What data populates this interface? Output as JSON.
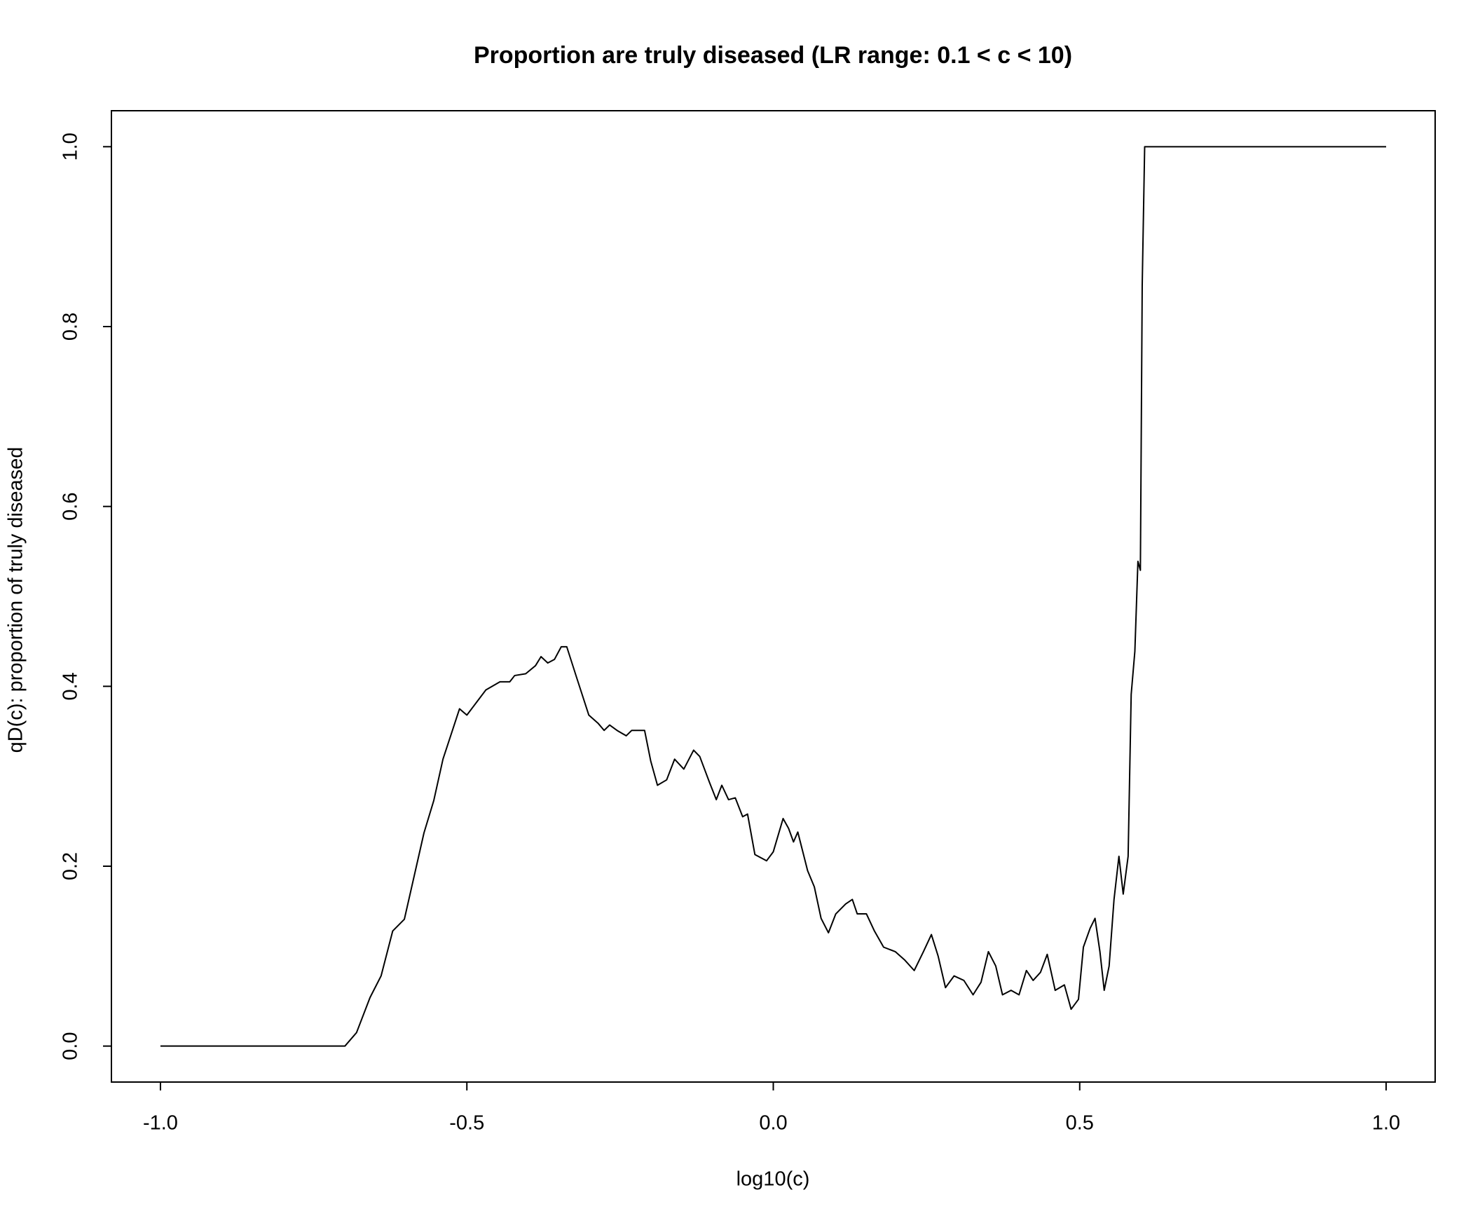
{
  "chart_data": {
    "type": "line",
    "title": "Proportion are truly diseased (LR range: 0.1 < c < 10)",
    "x_label": "log10(c)",
    "y_label": "qD(c): proportion of truly diseased",
    "color": "#000000",
    "x": [
      -1.0,
      -0.699,
      -0.68,
      -0.658,
      -0.64,
      -0.621,
      -0.602,
      -0.57,
      -0.554,
      -0.539,
      -0.512,
      -0.5,
      -0.469,
      -0.446,
      -0.43,
      -0.422,
      -0.404,
      -0.388,
      -0.379,
      -0.368,
      -0.357,
      -0.346,
      -0.337,
      -0.321,
      -0.301,
      -0.286,
      -0.276,
      -0.267,
      -0.255,
      -0.24,
      -0.231,
      -0.21,
      -0.2,
      -0.189,
      -0.174,
      -0.161,
      -0.146,
      -0.13,
      -0.12,
      -0.104,
      -0.093,
      -0.084,
      -0.073,
      -0.062,
      -0.05,
      -0.042,
      -0.03,
      -0.011,
      0.0,
      0.016,
      0.025,
      0.033,
      0.04,
      0.056,
      0.067,
      0.078,
      0.09,
      0.102,
      0.118,
      0.129,
      0.137,
      0.152,
      0.165,
      0.18,
      0.199,
      0.214,
      0.23,
      0.245,
      0.258,
      0.269,
      0.281,
      0.295,
      0.311,
      0.326,
      0.339,
      0.351,
      0.363,
      0.374,
      0.388,
      0.401,
      0.413,
      0.424,
      0.436,
      0.447,
      0.46,
      0.475,
      0.486,
      0.498,
      0.506,
      0.517,
      0.525,
      0.533,
      0.54,
      0.548,
      0.556,
      0.564,
      0.571,
      0.579,
      0.584,
      0.59,
      0.595,
      0.599,
      0.602,
      0.606,
      1.0
    ],
    "values": [
      0,
      0,
      0.015,
      0.054,
      0.078,
      0.128,
      0.141,
      0.237,
      0.273,
      0.319,
      0.375,
      0.368,
      0.396,
      0.405,
      0.405,
      0.412,
      0.414,
      0.423,
      0.433,
      0.426,
      0.43,
      0.444,
      0.444,
      0.41,
      0.368,
      0.359,
      0.351,
      0.357,
      0.351,
      0.345,
      0.351,
      0.351,
      0.317,
      0.29,
      0.296,
      0.319,
      0.308,
      0.329,
      0.322,
      0.293,
      0.274,
      0.29,
      0.274,
      0.276,
      0.255,
      0.258,
      0.213,
      0.206,
      0.216,
      0.253,
      0.242,
      0.227,
      0.238,
      0.195,
      0.177,
      0.142,
      0.126,
      0.147,
      0.158,
      0.163,
      0.147,
      0.147,
      0.128,
      0.11,
      0.105,
      0.096,
      0.084,
      0.105,
      0.124,
      0.1,
      0.065,
      0.078,
      0.073,
      0.057,
      0.071,
      0.105,
      0.089,
      0.057,
      0.062,
      0.057,
      0.084,
      0.073,
      0.082,
      0.102,
      0.062,
      0.068,
      0.041,
      0.052,
      0.11,
      0.131,
      0.142,
      0.105,
      0.062,
      0.089,
      0.163,
      0.211,
      0.169,
      0.211,
      0.391,
      0.439,
      0.539,
      0.529,
      0.846,
      1.0,
      1.0
    ],
    "xlim": [
      -1.08,
      1.08
    ],
    "ylim": [
      -0.04,
      1.04
    ],
    "xticks": [
      {
        "value": -1,
        "label": "-1.0"
      },
      {
        "value": -0.5,
        "label": "-0.5"
      },
      {
        "value": 0,
        "label": "0.0"
      },
      {
        "value": 0.5,
        "label": "0.5"
      },
      {
        "value": 1,
        "label": "1.0"
      }
    ],
    "yticks": [
      {
        "value": 0,
        "label": "0.0"
      },
      0.2,
      0.4,
      0.6,
      0.8,
      {
        "value": 1,
        "label": "1.0"
      }
    ],
    "grid": false
  }
}
